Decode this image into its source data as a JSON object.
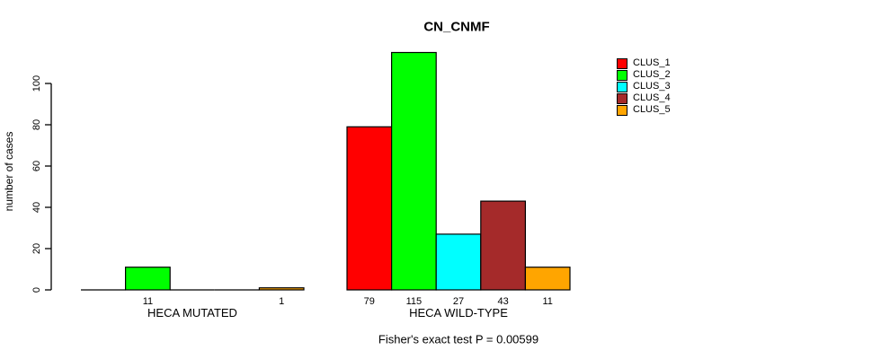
{
  "chart_data": {
    "type": "bar",
    "title": "CN_CNMF",
    "ylabel": "number of cases",
    "xlabel": "",
    "caption": "Fisher's exact test P = 0.00599",
    "categories": [
      "HECA MUTATED",
      "HECA WILD-TYPE"
    ],
    "series": [
      {
        "name": "CLUS_1",
        "color": "#FF0000",
        "values": [
          0,
          79
        ]
      },
      {
        "name": "CLUS_2",
        "color": "#00FF00",
        "values": [
          11,
          115
        ]
      },
      {
        "name": "CLUS_3",
        "color": "#00FFFF",
        "values": [
          0,
          27
        ]
      },
      {
        "name": "CLUS_4",
        "color": "#A52A2A",
        "values": [
          0,
          43
        ]
      },
      {
        "name": "CLUS_5",
        "color": "#FFA500",
        "values": [
          1,
          11
        ]
      }
    ],
    "bar_value_labels": {
      "HECA MUTATED": [
        "",
        "11",
        "",
        "",
        "1"
      ],
      "HECA WILD-TYPE": [
        "79",
        "115",
        "27",
        "43",
        "11"
      ]
    },
    "y_ticks": [
      0,
      20,
      40,
      60,
      80,
      100
    ],
    "ylim": [
      0,
      115
    ],
    "grid": false,
    "legend_position": "right",
    "axis_color": "#000000",
    "background_color": "#FFFFFF"
  }
}
